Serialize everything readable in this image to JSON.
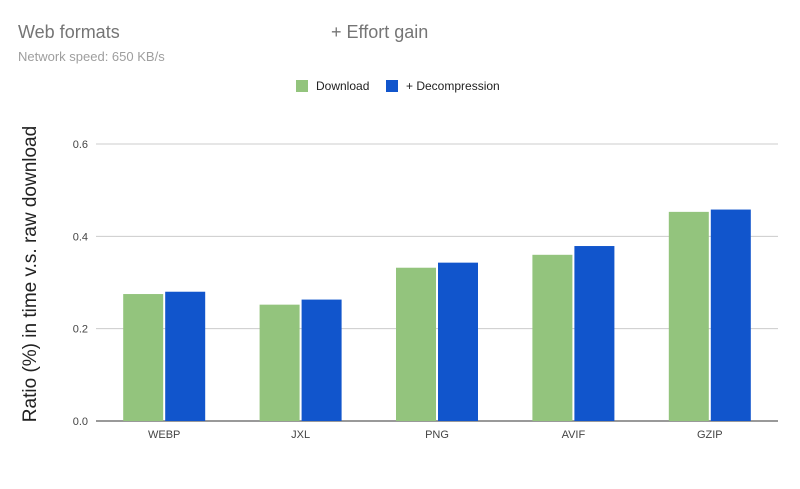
{
  "title_left": "Web formats",
  "title_right": "+ Effort gain",
  "subtitle": "Network speed: 650 KB/s",
  "colors": {
    "download": "#93c47d",
    "decompression": "#1155cc",
    "grid": "#cccccc",
    "axis": "#333333"
  },
  "chart_data": {
    "type": "bar",
    "categories": [
      "WEBP",
      "JXL",
      "PNG",
      "AVIF",
      "GZIP"
    ],
    "series": [
      {
        "name": "Download",
        "values": [
          0.275,
          0.252,
          0.332,
          0.36,
          0.453
        ]
      },
      {
        "name": "+ Decompression",
        "values": [
          0.28,
          0.263,
          0.343,
          0.379,
          0.458
        ]
      }
    ],
    "xlabel": "",
    "ylabel": "Ratio (%) in time  v.s.  raw download",
    "ylim": [
      0,
      0.6
    ],
    "yticks": [
      "0.0",
      "0.2",
      "0.4",
      "0.6"
    ],
    "grid": true,
    "legend": "top-center"
  }
}
